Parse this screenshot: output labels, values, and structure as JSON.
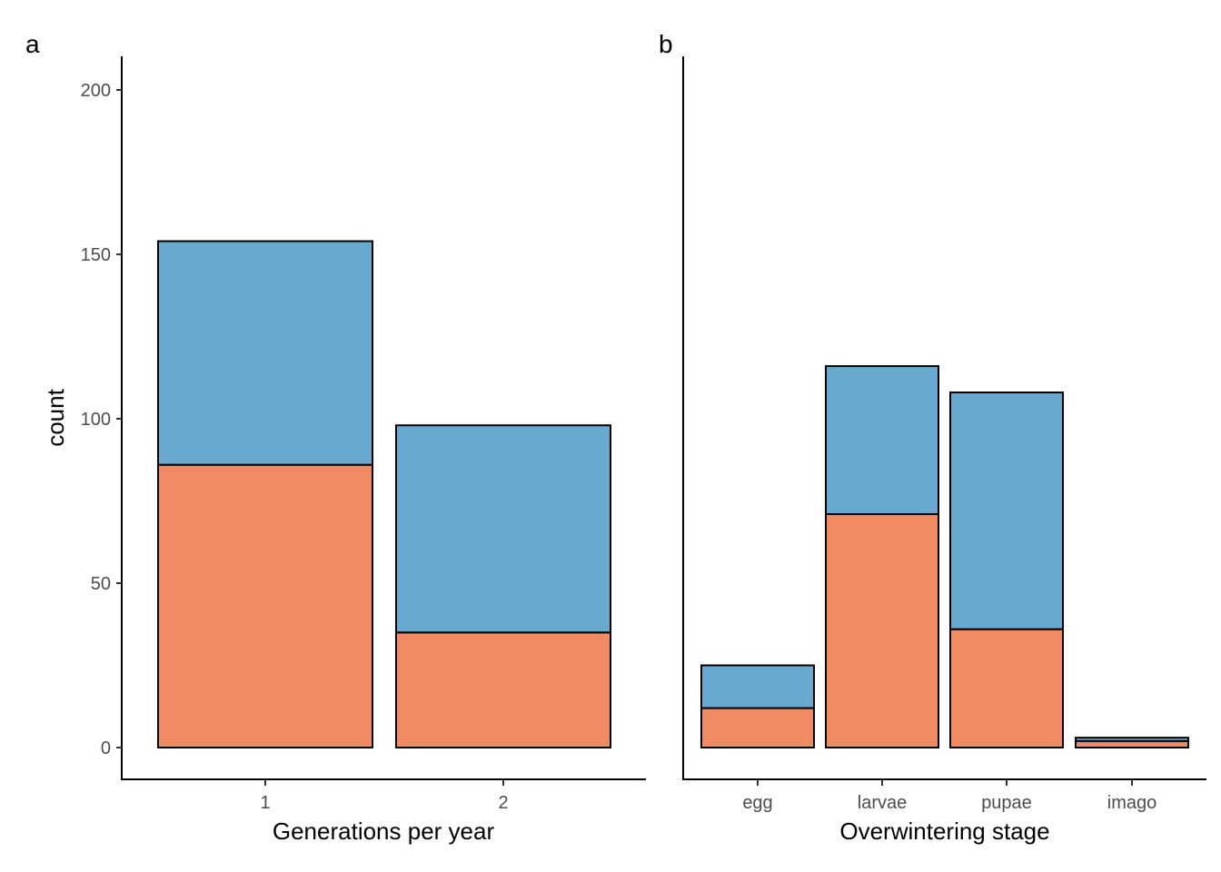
{
  "colors": {
    "top_segment": "#67a9cf",
    "bottom_segment": "#ef8a62",
    "outline": "#000000",
    "tick_text": "#4d4d4d"
  },
  "chart_data": [
    {
      "panel": "a",
      "type": "bar",
      "stacked": true,
      "xlabel": "Generations per year",
      "ylabel": "count",
      "categories": [
        "1",
        "2"
      ],
      "ylim": [
        -9,
        210
      ],
      "yticks": [
        0,
        50,
        100,
        150,
        200
      ],
      "series": [
        {
          "color": "#ef8a62",
          "values": [
            86,
            35
          ]
        },
        {
          "color": "#67a9cf",
          "values": [
            68,
            63
          ]
        }
      ],
      "grid": false,
      "legend": "none"
    },
    {
      "panel": "b",
      "type": "bar",
      "stacked": true,
      "xlabel": "Overwintering stage",
      "ylabel": "",
      "categories": [
        "egg",
        "larvae",
        "pupae",
        "imago"
      ],
      "ylim": [
        -9,
        210
      ],
      "yticks": [],
      "series": [
        {
          "color": "#ef8a62",
          "values": [
            12,
            71,
            36,
            2
          ]
        },
        {
          "color": "#67a9cf",
          "values": [
            13,
            45,
            72,
            1
          ]
        }
      ],
      "grid": false,
      "legend": "none"
    }
  ]
}
